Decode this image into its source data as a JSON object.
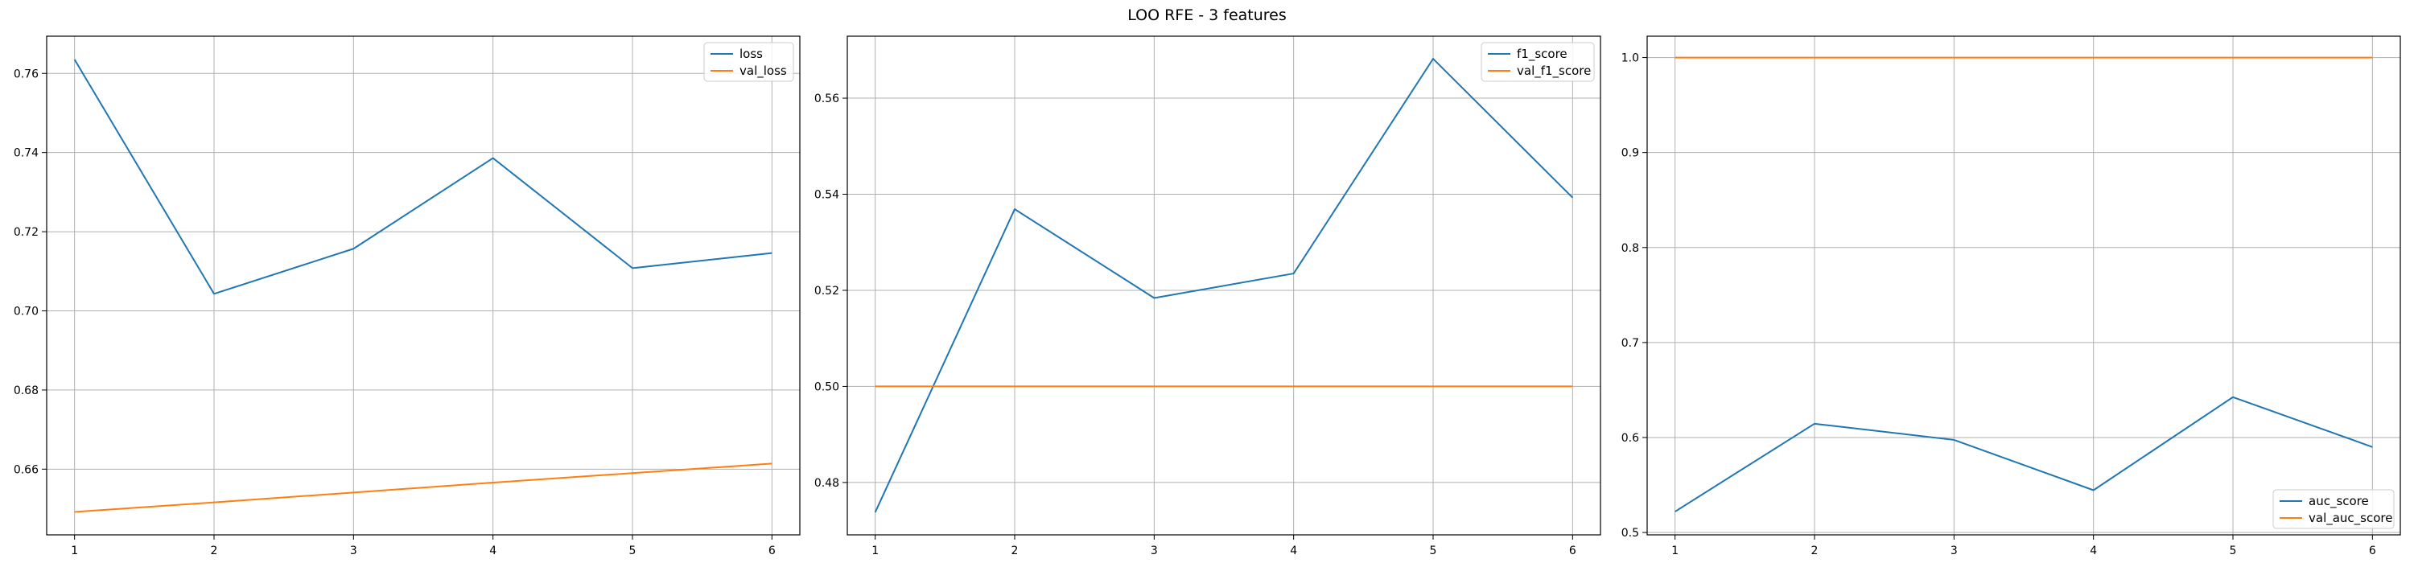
{
  "figure": {
    "title": "LOO RFE - 3 features"
  },
  "colors": {
    "blue": "#1f77b4",
    "orange": "#ff7f0e",
    "grid": "#b0b0b0",
    "axis": "#000000"
  },
  "chart_data": [
    {
      "type": "line",
      "x": [
        1,
        2,
        3,
        4,
        5,
        6
      ],
      "series": [
        {
          "name": "loss",
          "color": "#1f77b4",
          "values": [
            0.7635,
            0.7043,
            0.7157,
            0.7386,
            0.7108,
            0.7146
          ]
        },
        {
          "name": "val_loss",
          "color": "#ff7f0e",
          "values": [
            0.6492,
            0.6516,
            0.6541,
            0.6566,
            0.659,
            0.6614
          ]
        }
      ],
      "xlim": [
        0.8,
        6.2
      ],
      "ylim": [
        0.6434,
        0.7694
      ],
      "xticks": [
        1,
        2,
        3,
        4,
        5,
        6
      ],
      "yticks": [
        0.66,
        0.68,
        0.7,
        0.72,
        0.74,
        0.76
      ],
      "ytick_labels": [
        "0.66",
        "0.68",
        "0.70",
        "0.72",
        "0.74",
        "0.76"
      ],
      "grid": true,
      "legend": "top-right"
    },
    {
      "type": "line",
      "x": [
        1,
        2,
        3,
        4,
        5,
        6
      ],
      "series": [
        {
          "name": "f1_score",
          "color": "#1f77b4",
          "values": [
            0.4738,
            0.5369,
            0.5184,
            0.5235,
            0.5682,
            0.5393
          ]
        },
        {
          "name": "val_f1_score",
          "color": "#ff7f0e",
          "values": [
            0.5,
            0.5,
            0.5,
            0.5,
            0.5,
            0.5
          ]
        }
      ],
      "xlim": [
        0.8,
        6.2
      ],
      "ylim": [
        0.4691,
        0.5729
      ],
      "xticks": [
        1,
        2,
        3,
        4,
        5,
        6
      ],
      "yticks": [
        0.48,
        0.5,
        0.52,
        0.54,
        0.56
      ],
      "ytick_labels": [
        "0.48",
        "0.50",
        "0.52",
        "0.54",
        "0.56"
      ],
      "grid": true,
      "legend": "top-right"
    },
    {
      "type": "line",
      "x": [
        1,
        2,
        3,
        4,
        5,
        6
      ],
      "series": [
        {
          "name": "auc_score",
          "color": "#1f77b4",
          "values": [
            0.522,
            0.6145,
            0.5975,
            0.5445,
            0.6425,
            0.59
          ]
        },
        {
          "name": "val_auc_score",
          "color": "#ff7f0e",
          "values": [
            1.0,
            1.0,
            1.0,
            1.0,
            1.0,
            1.0
          ]
        }
      ],
      "xlim": [
        0.8,
        6.2
      ],
      "ylim": [
        0.4975,
        1.0225
      ],
      "xticks": [
        1,
        2,
        3,
        4,
        5,
        6
      ],
      "yticks": [
        0.5,
        0.6,
        0.7,
        0.8,
        0.9,
        1.0
      ],
      "ytick_labels": [
        "0.5",
        "0.6",
        "0.7",
        "0.8",
        "0.9",
        "1.0"
      ],
      "grid": true,
      "legend": "bottom-right"
    }
  ]
}
